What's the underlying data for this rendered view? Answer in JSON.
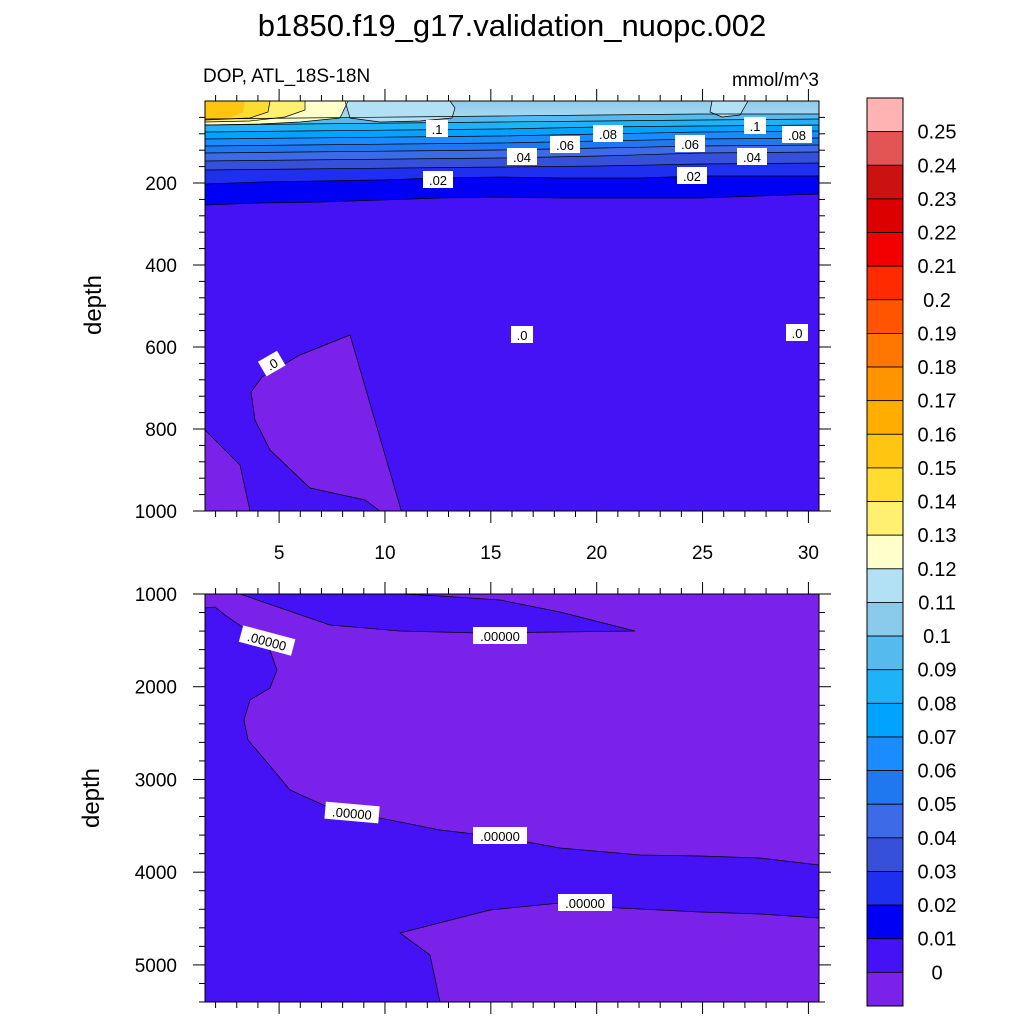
{
  "title": "b1850.f19_g17.validation_nuopc.002",
  "top_panel": {
    "left_string": "DOP, ATL_18S-18N",
    "right_string": "mmol/m^3",
    "ylabel": "depth"
  },
  "bottom_panel": {
    "ylabel": "depth"
  },
  "colorbar": {
    "levels": [
      "0.25",
      "0.24",
      "0.23",
      "0.22",
      "0.21",
      "0.2",
      "0.19",
      "0.18",
      "0.17",
      "0.16",
      "0.15",
      "0.14",
      "0.13",
      "0.12",
      "0.11",
      "0.1",
      "0.09",
      "0.08",
      "0.07",
      "0.06",
      "0.05",
      "0.04",
      "0.03",
      "0.02",
      "0.01",
      "0"
    ],
    "colors": [
      "#ffb3b3",
      "#e35555",
      "#cc1111",
      "#dd0000",
      "#f20000",
      "#ff2a00",
      "#ff5500",
      "#ff7700",
      "#ff9300",
      "#ffae00",
      "#ffc510",
      "#ffdc30",
      "#fff070",
      "#ffffcc",
      "#b2e0f5",
      "#8acbeb",
      "#55bbee",
      "#1eb2f7",
      "#00a3ff",
      "#1a8cff",
      "#1f78ef",
      "#3d6ae6",
      "#3650da",
      "#1e2ff0",
      "#0000f5",
      "#4512f5",
      "#7a22ea"
    ]
  },
  "chart_data": [
    {
      "type": "contour",
      "panel": "top",
      "x": [
        5,
        10,
        15,
        20,
        25,
        30
      ],
      "xlim": [
        1.5,
        30.5
      ],
      "ylim": [
        1000,
        0
      ],
      "yticks": [
        200,
        400,
        600,
        800,
        1000
      ],
      "xlabel": "",
      "ylabel": "depth",
      "units": "mmol/m^3",
      "contour_labels": [
        ".1",
        ".1",
        ".08",
        ".08",
        ".06",
        ".06",
        ".04",
        ".04",
        ".02",
        ".02",
        ".0",
        ".0",
        ".0"
      ]
    },
    {
      "type": "contour",
      "panel": "bottom",
      "x": [
        5,
        10,
        15,
        20,
        25,
        30
      ],
      "xlim": [
        1.5,
        30.5
      ],
      "ylim": [
        5400,
        1000
      ],
      "yticks": [
        1000,
        2000,
        3000,
        4000,
        5000
      ],
      "xlabel": "",
      "ylabel": "depth",
      "contour_labels": [
        ".00000",
        ".00000",
        ".00000",
        ".00000",
        ".00000"
      ]
    }
  ]
}
